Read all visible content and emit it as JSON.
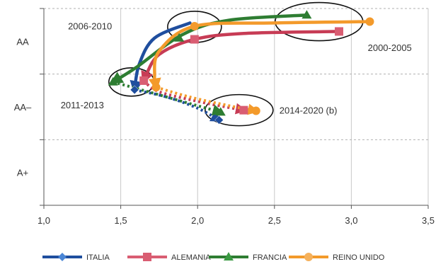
{
  "chart_data": {
    "type": "line",
    "title": "",
    "xlabel": "",
    "ylabel": "",
    "xlim": [
      1.0,
      3.5
    ],
    "x_ticks": [
      1.0,
      1.5,
      2.0,
      2.5,
      3.0,
      3.5
    ],
    "x_tick_labels": [
      "1,0",
      "1,5",
      "2,0",
      "2,5",
      "3,0",
      "3,5"
    ],
    "y_categories": [
      "A+",
      "AA–",
      "AA"
    ],
    "y_tick_labels": [
      {
        "label": "AA",
        "y": 2.5
      },
      {
        "label": "AA–",
        "y": 1.5
      },
      {
        "label": "A+",
        "y": 0.5
      }
    ],
    "ylim": [
      0,
      3
    ],
    "grid": "dashed",
    "legend_position": "bottom",
    "series": [
      {
        "name": "ITALIA",
        "color": "#1f4e9e",
        "dash": "solid",
        "start": {
          "x": 1.95,
          "y": 2.78
        },
        "path": [
          [
            1.95,
            2.78
          ],
          [
            1.72,
            2.55
          ],
          [
            1.62,
            2.15
          ],
          [
            1.59,
            1.76
          ]
        ],
        "end": {
          "x": 1.59,
          "y": 1.76
        },
        "arrow": true,
        "proj_path": [
          [
            1.59,
            1.76
          ],
          [
            1.8,
            1.65
          ],
          [
            2.0,
            1.48
          ],
          [
            2.14,
            1.3
          ]
        ],
        "proj_end": {
          "x": 2.14,
          "y": 1.3
        },
        "proj_arrow": true
      },
      {
        "name": "ALEMANIA",
        "color": "#c73c55",
        "dash": "solid",
        "start": {
          "x": 2.92,
          "y": 2.65
        },
        "start_marker": true,
        "path": [
          [
            2.92,
            2.65
          ],
          [
            2.3,
            2.62
          ],
          [
            1.98,
            2.53
          ],
          [
            1.75,
            2.3
          ],
          [
            1.66,
            1.96
          ],
          [
            1.65,
            1.9
          ]
        ],
        "end": {
          "x": 1.65,
          "y": 1.9
        },
        "arrow": true,
        "mid_markers": [
          {
            "x": 1.98,
            "y": 2.53
          }
        ],
        "proj_path": [
          [
            1.65,
            1.9
          ],
          [
            1.75,
            1.73
          ],
          [
            2.05,
            1.56
          ],
          [
            2.3,
            1.45
          ]
        ],
        "proj_end": {
          "x": 2.3,
          "y": 1.45
        },
        "proj_arrow": true
      },
      {
        "name": "FRANCIA",
        "color": "#2e7d32",
        "dash": "solid",
        "start": {
          "x": 2.71,
          "y": 2.9
        },
        "start_marker": true,
        "path": [
          [
            2.71,
            2.9
          ],
          [
            2.2,
            2.82
          ],
          [
            1.9,
            2.6
          ],
          [
            1.6,
            2.1
          ],
          [
            1.45,
            1.88
          ]
        ],
        "end": {
          "x": 1.45,
          "y": 1.88
        },
        "arrow": true,
        "mid_markers": [
          {
            "x": 1.88,
            "y": 2.55
          }
        ],
        "proj_path": [
          [
            1.45,
            1.88
          ],
          [
            1.65,
            1.75
          ],
          [
            1.95,
            1.55
          ],
          [
            2.15,
            1.42
          ]
        ],
        "proj_end": {
          "x": 2.15,
          "y": 1.42
        },
        "proj_arrow": true
      },
      {
        "name": "REINO UNIDO",
        "color": "#f39a2b",
        "dash": "solid",
        "start": {
          "x": 3.12,
          "y": 2.8
        },
        "start_marker": true,
        "path": [
          [
            3.12,
            2.8
          ],
          [
            2.5,
            2.78
          ],
          [
            1.98,
            2.73
          ],
          [
            1.75,
            2.35
          ],
          [
            1.72,
            1.96
          ],
          [
            1.73,
            1.8
          ]
        ],
        "end": {
          "x": 1.73,
          "y": 1.8
        },
        "arrow": true,
        "mid_markers": [
          {
            "x": 1.98,
            "y": 2.73
          }
        ],
        "proj_path": [
          [
            1.73,
            1.8
          ],
          [
            1.95,
            1.65
          ],
          [
            2.2,
            1.52
          ],
          [
            2.38,
            1.44
          ]
        ],
        "proj_end": {
          "x": 2.38,
          "y": 1.44
        },
        "proj_arrow": true
      }
    ],
    "annotations": [
      {
        "text": "2006-2010",
        "x": 1.3,
        "y": 2.68
      },
      {
        "text": "2000-2005",
        "x": 3.25,
        "y": 2.35
      },
      {
        "text": "2011-2013",
        "x": 1.25,
        "y": 1.48
      },
      {
        "text": "2014-2020 (b)",
        "x": 2.72,
        "y": 1.4
      }
    ],
    "ellipses": [
      {
        "label": "2006-2010",
        "cx": 1.98,
        "cy": 2.72
      },
      {
        "label": "2000-2005",
        "cx": 2.79,
        "cy": 2.8
      },
      {
        "label": "2011-2013",
        "cx": 1.57,
        "cy": 1.88
      },
      {
        "label": "2014-2020 (b)",
        "cx": 2.27,
        "cy": 1.45
      }
    ]
  },
  "legend": {
    "items": [
      {
        "label": "ITALIA",
        "color": "#1f4e9e",
        "marker": "diamond"
      },
      {
        "label": "ALEMANIA",
        "color": "#d95d72",
        "marker": "square"
      },
      {
        "label": "FRANCIA",
        "color": "#2e7d32",
        "marker": "triangle"
      },
      {
        "label": "REINO UNIDO",
        "color": "#f39a2b",
        "marker": "circle"
      }
    ]
  }
}
